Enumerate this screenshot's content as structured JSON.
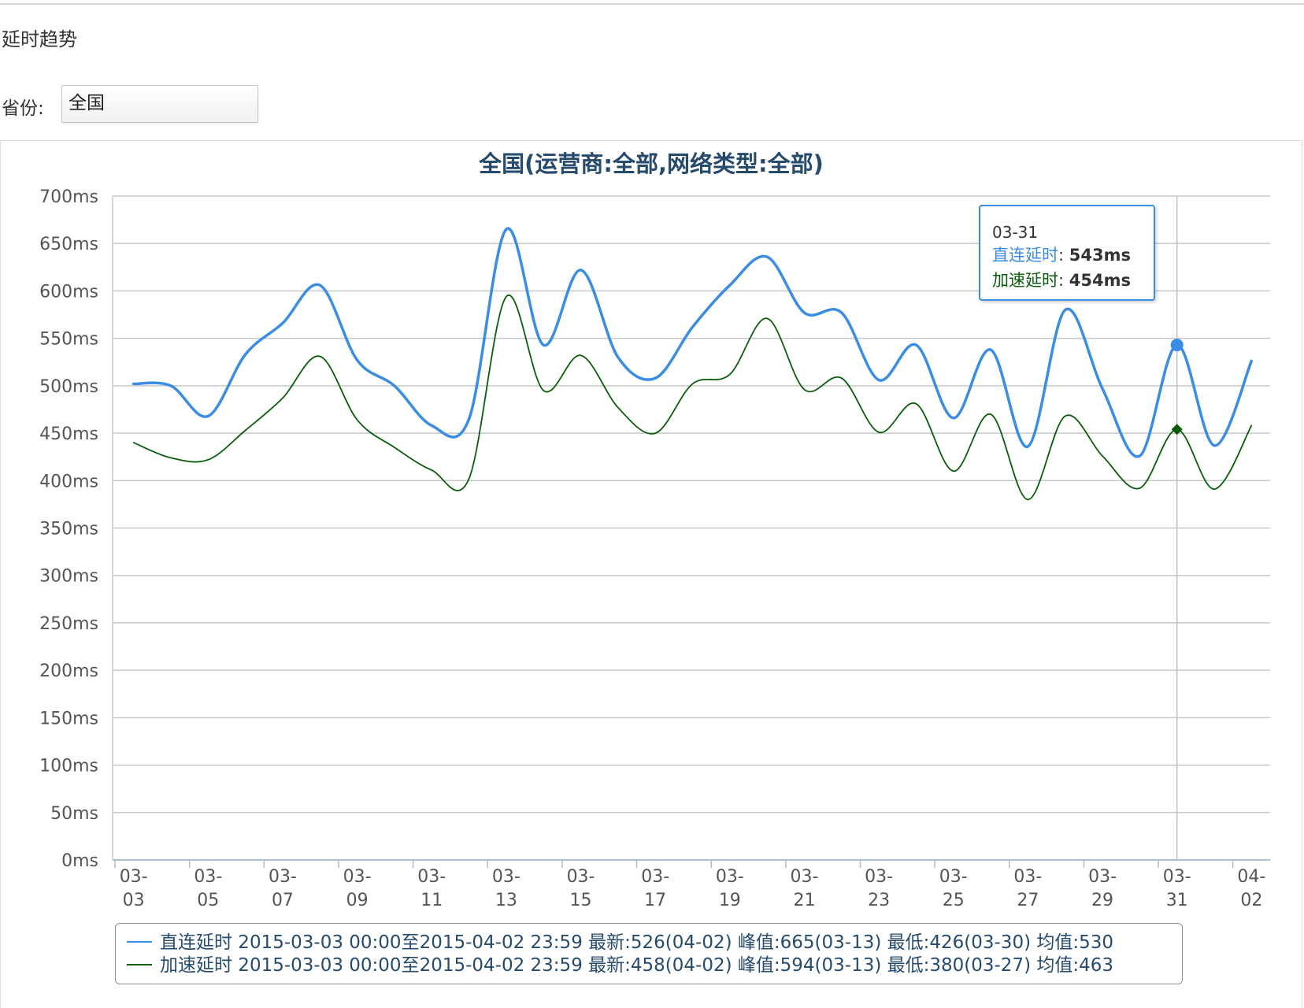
{
  "section_title": "延时趋势",
  "filter": {
    "label": "省份:",
    "selected": "全国"
  },
  "colors": {
    "direct": "#3a8de3",
    "accel": "#0a5c0a",
    "title": "#274b6d",
    "grid": "#c8c8c8"
  },
  "chart_data": {
    "type": "line",
    "title": "全国(运营商:全部,网络类型:全部)",
    "xlabel": "",
    "ylabel": "",
    "ylim": [
      0,
      700
    ],
    "y_ticks": [
      "0ms",
      "50ms",
      "100ms",
      "150ms",
      "200ms",
      "250ms",
      "300ms",
      "350ms",
      "400ms",
      "450ms",
      "500ms",
      "550ms",
      "600ms",
      "650ms",
      "700ms"
    ],
    "x": [
      "03-03",
      "03-04",
      "03-05",
      "03-06",
      "03-07",
      "03-08",
      "03-09",
      "03-10",
      "03-11",
      "03-12",
      "03-13",
      "03-14",
      "03-15",
      "03-16",
      "03-17",
      "03-18",
      "03-19",
      "03-20",
      "03-21",
      "03-22",
      "03-23",
      "03-24",
      "03-25",
      "03-26",
      "03-27",
      "03-28",
      "03-29",
      "03-30",
      "03-31",
      "04-01",
      "04-02"
    ],
    "x_tick_labels": [
      [
        "03-",
        "03"
      ],
      [
        "03-",
        "05"
      ],
      [
        "03-",
        "07"
      ],
      [
        "03-",
        "09"
      ],
      [
        "03-",
        "11"
      ],
      [
        "03-",
        "13"
      ],
      [
        "03-",
        "15"
      ],
      [
        "03-",
        "17"
      ],
      [
        "03-",
        "19"
      ],
      [
        "03-",
        "21"
      ],
      [
        "03-",
        "23"
      ],
      [
        "03-",
        "25"
      ],
      [
        "03-",
        "27"
      ],
      [
        "03-",
        "29"
      ],
      [
        "03-",
        "31"
      ],
      [
        "04-",
        "02"
      ]
    ],
    "grid": true,
    "legend_placement": "bottom",
    "series": [
      {
        "name": "直连延时",
        "color": "#3a8de3",
        "values": [
          502,
          500,
          468,
          533,
          566,
          606,
          527,
          500,
          458,
          465,
          665,
          543,
          622,
          530,
          508,
          562,
          606,
          636,
          577,
          577,
          506,
          543,
          466,
          538,
          436,
          580,
          497,
          426,
          543,
          437,
          526
        ]
      },
      {
        "name": "加速延时",
        "color": "#0a5c0a",
        "values": [
          440,
          424,
          422,
          453,
          487,
          531,
          464,
          435,
          411,
          402,
          594,
          495,
          532,
          477,
          450,
          502,
          512,
          571,
          496,
          508,
          451,
          481,
          410,
          470,
          380,
          468,
          426,
          392,
          454,
          391,
          458
        ]
      }
    ],
    "legend": [
      "直连延时 2015-03-03 00:00至2015-04-02 23:59 最新:526(04-02) 峰值:665(03-13) 最低:426(03-30) 均值:530",
      "加速延时 2015-03-03 00:00至2015-04-02 23:59 最新:458(04-02) 峰值:594(03-13) 最低:380(03-27) 均值:463"
    ],
    "tooltip": {
      "date": "03-31",
      "index": 28,
      "rows": [
        {
          "name": "直连延时",
          "value": "543ms"
        },
        {
          "name": "加速延时",
          "value": "454ms"
        }
      ]
    }
  }
}
